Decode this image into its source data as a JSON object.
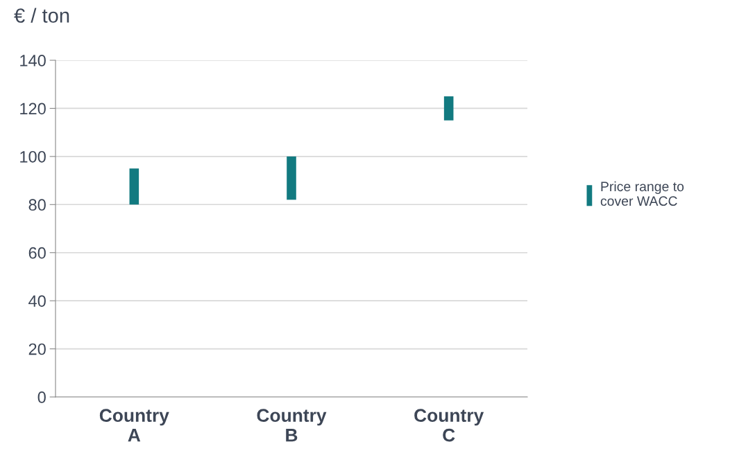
{
  "chart_data": {
    "type": "bar",
    "ylabel": "€ / ton",
    "categories": [
      "Country\nA",
      "Country\nB",
      "Country\nC"
    ],
    "series": [
      {
        "name": "Price range to\ncover WACC",
        "color": "#127a80",
        "base": [
          80,
          82,
          115
        ],
        "values": [
          15,
          18,
          10
        ]
      }
    ],
    "ylim": [
      0,
      140
    ],
    "yticks": [
      0,
      20,
      40,
      60,
      80,
      100,
      120,
      140
    ],
    "grid": "y",
    "legend": "right"
  }
}
